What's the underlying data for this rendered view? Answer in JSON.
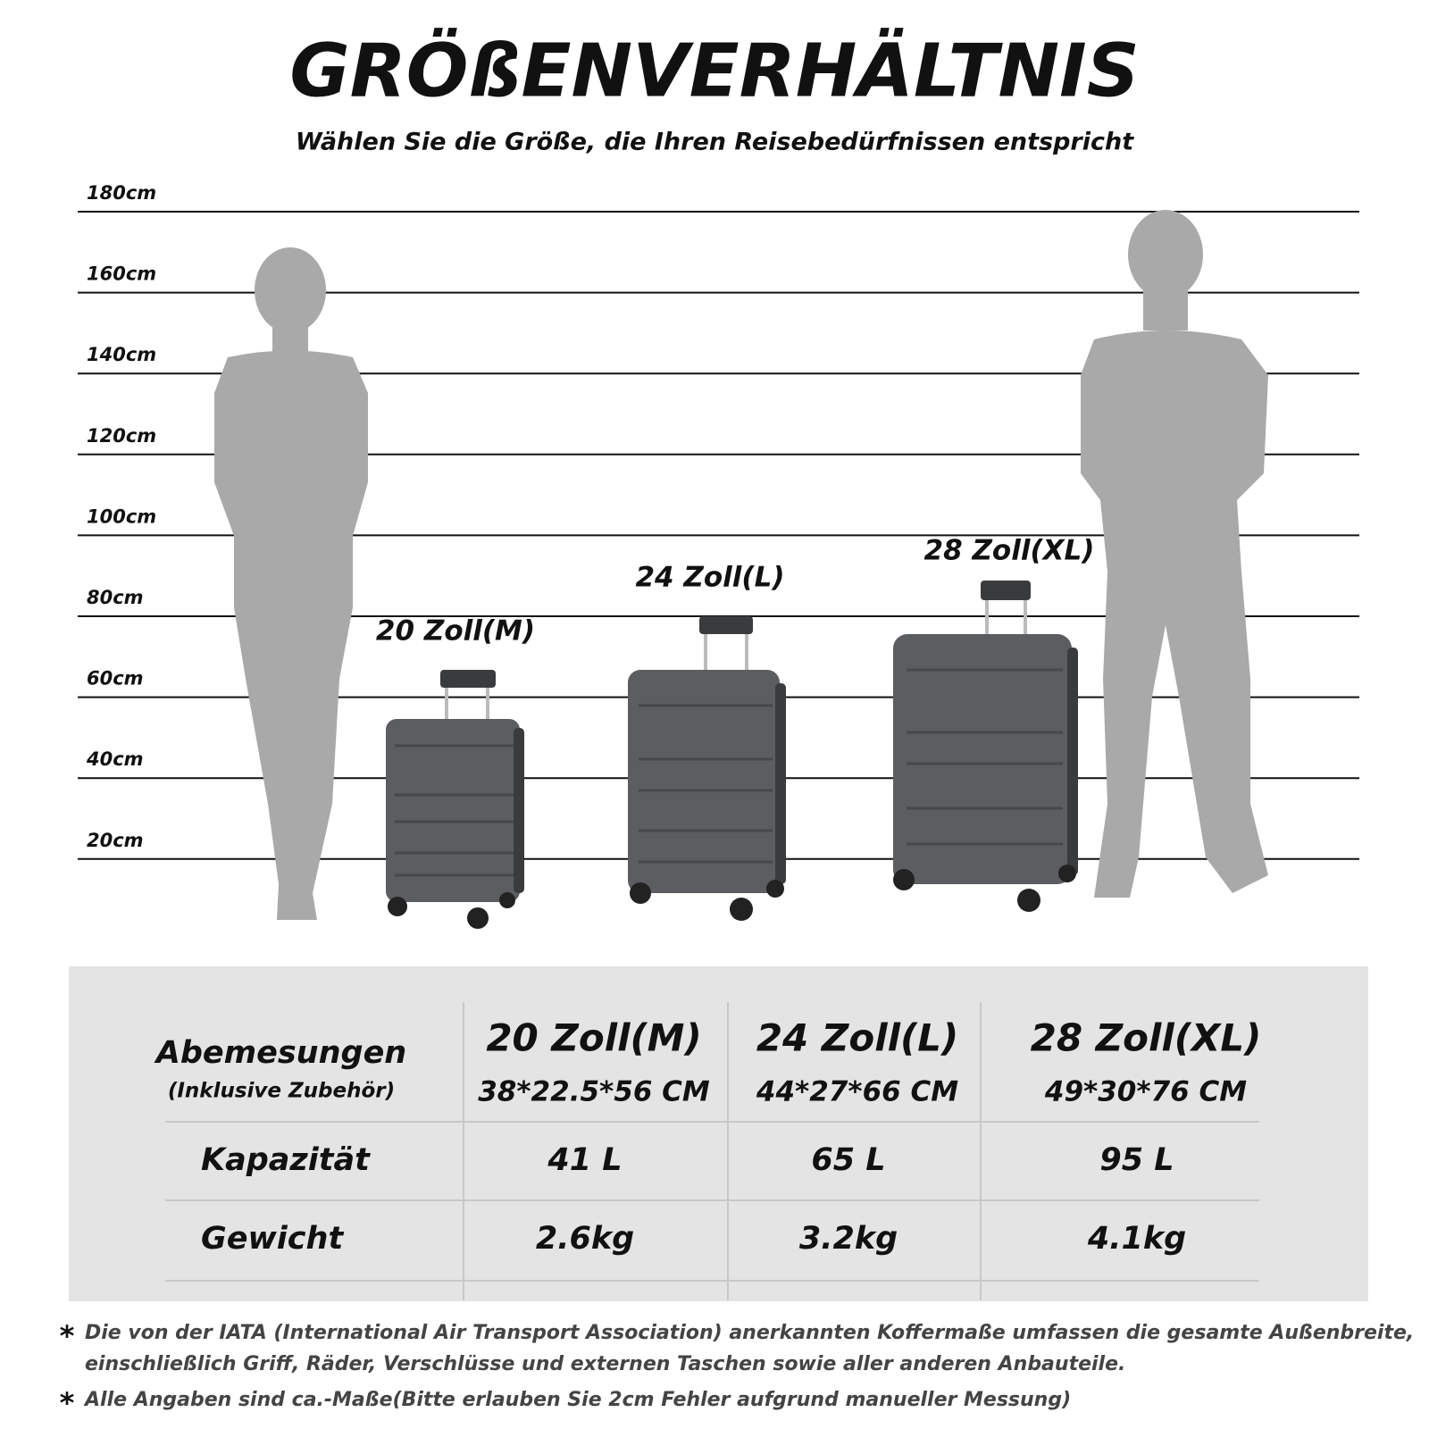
{
  "header": {
    "title": "GRÖßENVERHÄLTNIS",
    "subtitle": "Wählen Sie die Größe, die Ihren Reisebedürfnissen entspricht"
  },
  "scale": [
    "180cm",
    "160cm",
    "140cm",
    "120cm",
    "100cm",
    "80cm",
    "60cm",
    "40cm",
    "20cm"
  ],
  "sizes": [
    "20 Zoll(M)",
    "24 Zoll(L)",
    "28 Zoll(XL)"
  ],
  "table": {
    "dimensions": {
      "label": "Abemesungen",
      "note": "(Inklusive Zubehör)"
    },
    "columns": [
      {
        "name": "20 Zoll(M)",
        "dimensions": "38*22.5*56 CM"
      },
      {
        "name": "24 Zoll(L)",
        "dimensions": "44*27*66 CM"
      },
      {
        "name": "28 Zoll(XL)",
        "dimensions": "49*30*76 CM"
      }
    ],
    "rows": [
      {
        "label": "Kapazität",
        "values": [
          "41 L",
          "65 L",
          "95 L"
        ]
      },
      {
        "label": "Gewicht",
        "values": [
          "2.6kg",
          "3.2kg",
          "4.1kg"
        ]
      }
    ]
  },
  "notes": [
    [
      "Die von der IATA (International Air Transport Association) anerkannten Koffermaße umfassen die gesamte Außenbreite,",
      "einschließlich Griff, Räder, Verschlüsse und externen Taschen sowie aller anderen Anbauteile."
    ],
    [
      "Alle Angaben sind ca.-Maße(Bitte erlauben Sie 2cm Fehler aufgrund manueller Messung)"
    ]
  ]
}
